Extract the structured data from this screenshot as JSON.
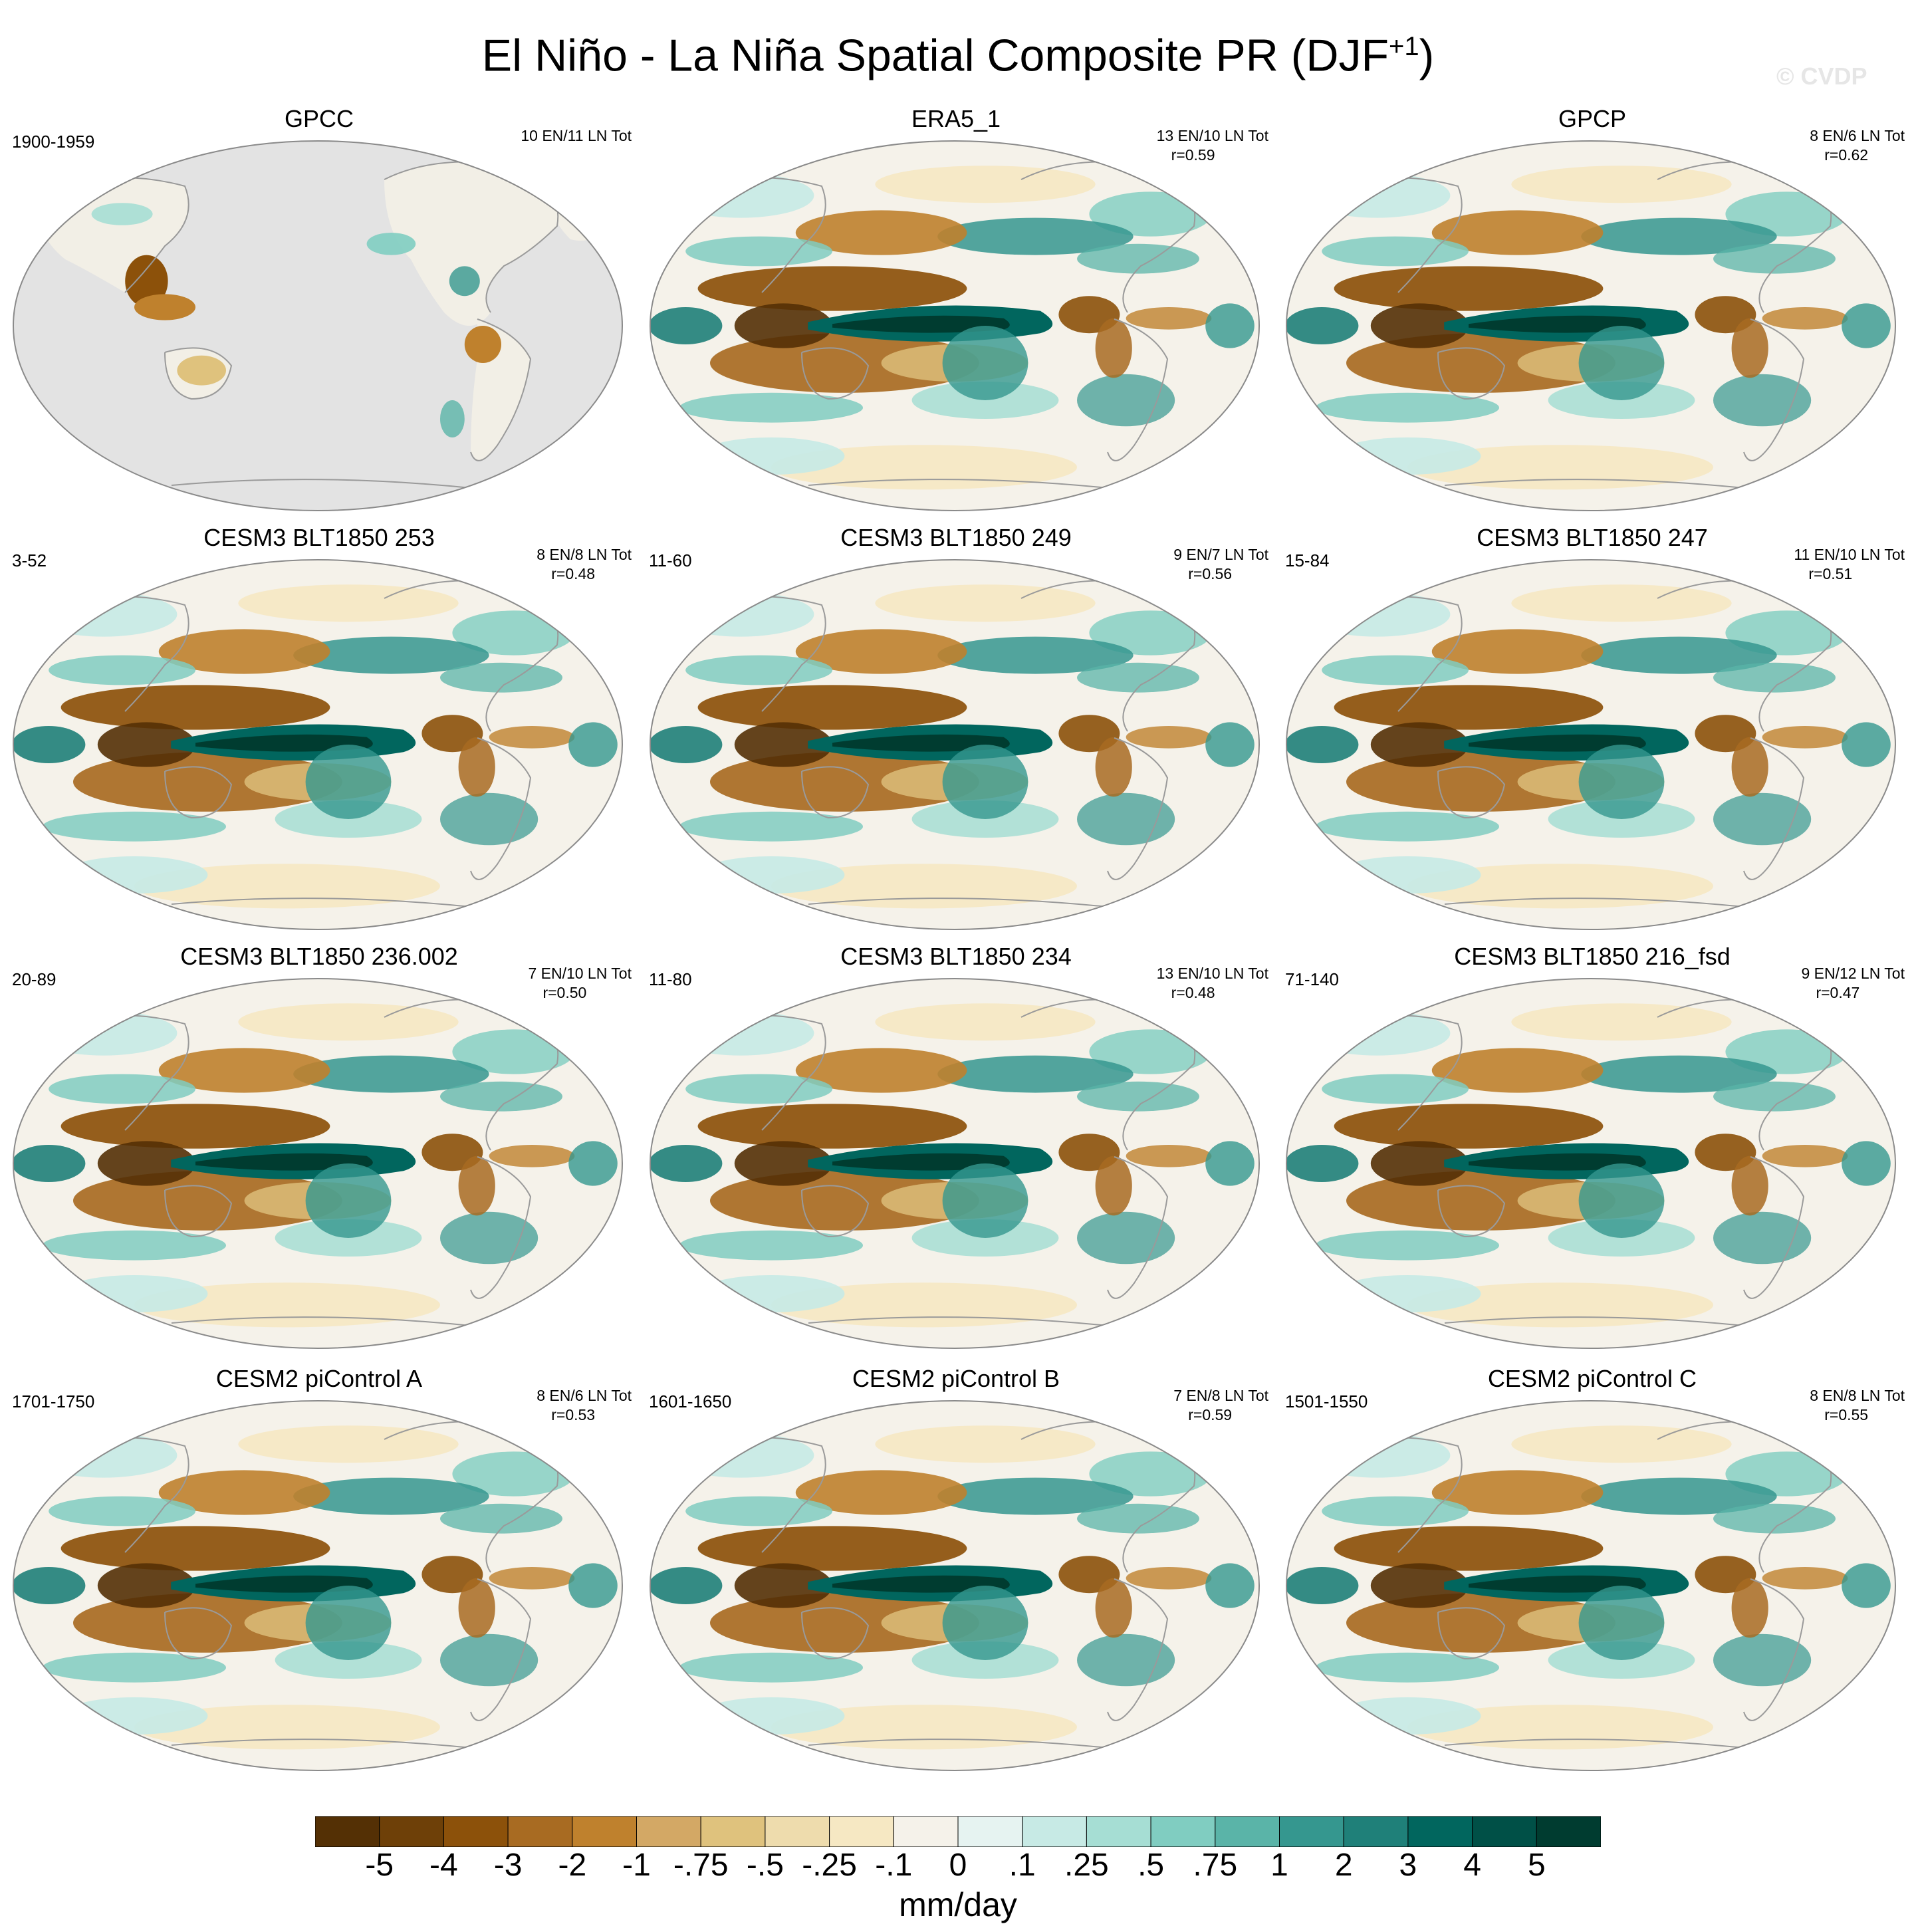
{
  "title": "El Niño - La Niña Spatial Composite PR (DJF",
  "title_sup": "+1",
  "title_close": ")",
  "watermark": "© CVDP",
  "panels": [
    {
      "title": "GPCC",
      "years": "1900-1959",
      "counts": "10 EN/11 LN Tot",
      "r": "",
      "variant": "land"
    },
    {
      "title": "ERA5_1",
      "years": "",
      "counts": "13 EN/10 LN Tot",
      "r": "r=0.59",
      "variant": "obs"
    },
    {
      "title": "GPCP",
      "years": "",
      "counts": "8 EN/6 LN Tot",
      "r": "r=0.62",
      "variant": "obs"
    },
    {
      "title": "CESM3 BLT1850 253",
      "years": "3-52",
      "counts": "8 EN/8 LN Tot",
      "r": "r=0.48",
      "variant": "model"
    },
    {
      "title": "CESM3 BLT1850 249",
      "years": "11-60",
      "counts": "9 EN/7 LN Tot",
      "r": "r=0.56",
      "variant": "model"
    },
    {
      "title": "CESM3 BLT1850 247",
      "years": "15-84",
      "counts": "11 EN/10 LN Tot",
      "r": "r=0.51",
      "variant": "model"
    },
    {
      "title": "CESM3 BLT1850 236.002",
      "years": "20-89",
      "counts": "7 EN/10 LN Tot",
      "r": "r=0.50",
      "variant": "model"
    },
    {
      "title": "CESM3 BLT1850 234",
      "years": "11-80",
      "counts": "13 EN/10 LN Tot",
      "r": "r=0.48",
      "variant": "model"
    },
    {
      "title": "CESM3 BLT1850 216_fsd",
      "years": "71-140",
      "counts": "9 EN/12 LN Tot",
      "r": "r=0.47",
      "variant": "model"
    },
    {
      "title": "CESM2 piControl A",
      "years": "1701-1750",
      "counts": "8 EN/6 LN Tot",
      "r": "r=0.53",
      "variant": "model"
    },
    {
      "title": "CESM2 piControl B",
      "years": "1601-1650",
      "counts": "7 EN/8 LN Tot",
      "r": "r=0.59",
      "variant": "model"
    },
    {
      "title": "CESM2 piControl C",
      "years": "1501-1550",
      "counts": "8 EN/8 LN Tot",
      "r": "r=0.55",
      "variant": "model"
    }
  ],
  "colorbar": {
    "colors": [
      "#543005",
      "#6e4008",
      "#8c510a",
      "#a86b22",
      "#bf812d",
      "#d3a865",
      "#dfc27d",
      "#eedcad",
      "#f6e8c3",
      "#f5f2ea",
      "#e6f3f1",
      "#c7eae5",
      "#a6ded4",
      "#80cdc1",
      "#5ab4a8",
      "#35978f",
      "#1f8079",
      "#01665e",
      "#005047",
      "#003c30"
    ],
    "labels": [
      "-5",
      "-4",
      "-3",
      "-2",
      "-1",
      "-.75",
      "-.5",
      "-.25",
      "-.1",
      "0",
      ".1",
      ".25",
      ".5",
      ".75",
      "1",
      "2",
      "3",
      "4",
      "5"
    ]
  },
  "units": "mm/day"
}
